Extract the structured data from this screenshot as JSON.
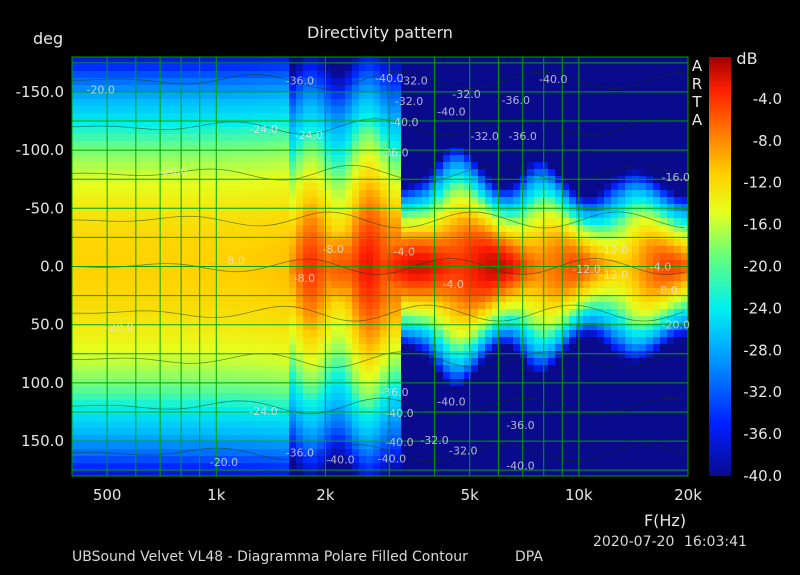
{
  "chart_data": {
    "type": "heatmap",
    "title": "Directivity pattern",
    "xlabel": "F(Hz)",
    "ylabel": "deg",
    "x_scale": "log",
    "xlim": [
      400,
      20000
    ],
    "ylim": [
      -180,
      180
    ],
    "x_ticks": [
      "500",
      "1k",
      "2k",
      "5k",
      "10k",
      "20k"
    ],
    "x_tick_values": [
      500,
      1000,
      2000,
      5000,
      10000,
      20000
    ],
    "y_ticks": [
      "-150.0",
      "-100.0",
      "-50.0",
      "0.0",
      "50.0",
      "100.0",
      "150.0"
    ],
    "y_tick_values": [
      -150,
      -100,
      -50,
      0,
      50,
      100,
      150
    ],
    "colorbar": {
      "label": "dB",
      "ticks": [
        "-4.0",
        "-8.0",
        "-12.0",
        "-16.0",
        "-20.0",
        "-24.0",
        "-28.0",
        "-32.0",
        "-36.0",
        "-40.0"
      ],
      "range": [
        -40,
        0
      ]
    },
    "grid": true,
    "contour_labels": [
      {
        "text": "-36.0",
        "f": 1700,
        "deg": -160
      },
      {
        "text": "-40.0",
        "f": 3000,
        "deg": -162
      },
      {
        "text": "-32.0",
        "f": 3500,
        "deg": -160
      },
      {
        "text": "-32.0",
        "f": 3400,
        "deg": -142
      },
      {
        "text": "-40.0",
        "f": 3300,
        "deg": -124
      },
      {
        "text": "-40.0",
        "f": 4450,
        "deg": -133
      },
      {
        "text": "-32.0",
        "f": 4900,
        "deg": -148
      },
      {
        "text": "-36.0",
        "f": 6700,
        "deg": -143
      },
      {
        "text": "-40.0",
        "f": 8500,
        "deg": -161
      },
      {
        "text": "-32.0",
        "f": 5500,
        "deg": -112
      },
      {
        "text": "-36.0",
        "f": 7000,
        "deg": -112
      },
      {
        "text": "-24.0",
        "f": 1350,
        "deg": -118
      },
      {
        "text": "-24.0",
        "f": 1800,
        "deg": -113
      },
      {
        "text": "-36.0",
        "f": 3100,
        "deg": -98
      },
      {
        "text": "-20.0",
        "f": 760,
        "deg": -82
      },
      {
        "text": "-20.0",
        "f": 480,
        "deg": -152
      },
      {
        "text": "-16.0",
        "f": 18500,
        "deg": -77
      },
      {
        "text": "-8.0",
        "f": 1120,
        "deg": -5
      },
      {
        "text": "-8.0",
        "f": 1750,
        "deg": 10
      },
      {
        "text": "-8.0",
        "f": 2100,
        "deg": -15
      },
      {
        "text": "-4.0",
        "f": 3300,
        "deg": -13
      },
      {
        "text": "-4.0",
        "f": 4500,
        "deg": 15
      },
      {
        "text": "-12.0",
        "f": 10500,
        "deg": 2
      },
      {
        "text": "-12.0",
        "f": 12500,
        "deg": -14
      },
      {
        "text": "-12.0",
        "f": 12500,
        "deg": 7
      },
      {
        "text": "-4.0",
        "f": 16800,
        "deg": 0
      },
      {
        "text": "-8.0",
        "f": 17500,
        "deg": 20
      },
      {
        "text": "-20.0",
        "f": 540,
        "deg": 52
      },
      {
        "text": "-20.0",
        "f": 18500,
        "deg": 50
      },
      {
        "text": "-24.0",
        "f": 1350,
        "deg": 124
      },
      {
        "text": "-36.0",
        "f": 3100,
        "deg": 108
      },
      {
        "text": "-40.0",
        "f": 3200,
        "deg": 126
      },
      {
        "text": "-40.0",
        "f": 4450,
        "deg": 116
      },
      {
        "text": "-36.0",
        "f": 6900,
        "deg": 136
      },
      {
        "text": "-32.0",
        "f": 4000,
        "deg": 149
      },
      {
        "text": "-40.0",
        "f": 3200,
        "deg": 151
      },
      {
        "text": "-32.0",
        "f": 4800,
        "deg": 158
      },
      {
        "text": "-36.0",
        "f": 1700,
        "deg": 160
      },
      {
        "text": "-40.0",
        "f": 2200,
        "deg": 166
      },
      {
        "text": "-40.0",
        "f": 3050,
        "deg": 165
      },
      {
        "text": "-40.0",
        "f": 6900,
        "deg": 171
      },
      {
        "text": "-20.0",
        "f": 1050,
        "deg": 168
      }
    ]
  },
  "side_label": [
    "A",
    "R",
    "T",
    "A"
  ],
  "footer": {
    "description": "UBSound Velvet VL48 - Diagramma Polare Filled Contour",
    "mode": "DPA",
    "date": "2020-07-20",
    "time": "16:03:41"
  },
  "colors": {
    "background": "#000000",
    "grid": "#00a000",
    "contour": "#0a3a0a"
  }
}
